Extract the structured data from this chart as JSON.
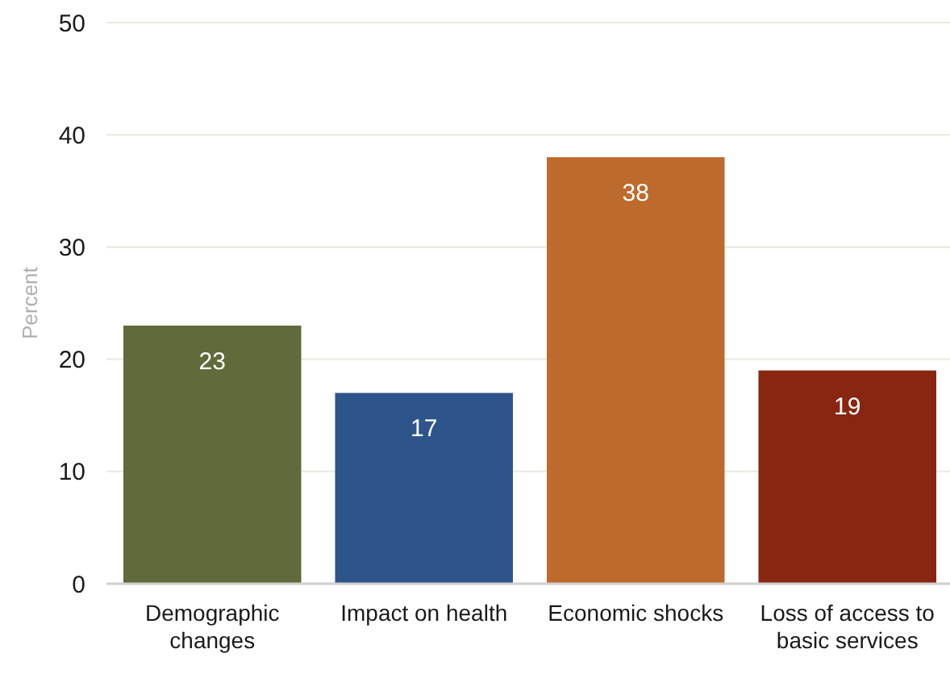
{
  "chart_data": {
    "type": "bar",
    "categories": [
      "Demographic changes",
      "Impact on health",
      "Economic shocks",
      "Loss of access to basic services"
    ],
    "values": [
      23,
      17,
      38,
      19
    ],
    "colors": [
      "#606a3a",
      "#2e558b",
      "#be6a2c",
      "#882612"
    ],
    "ylabel": "Percent",
    "ylim": [
      0,
      50
    ],
    "yticks": [
      0,
      10,
      20,
      30,
      40,
      50
    ],
    "grid": "y",
    "data_labels": true
  }
}
